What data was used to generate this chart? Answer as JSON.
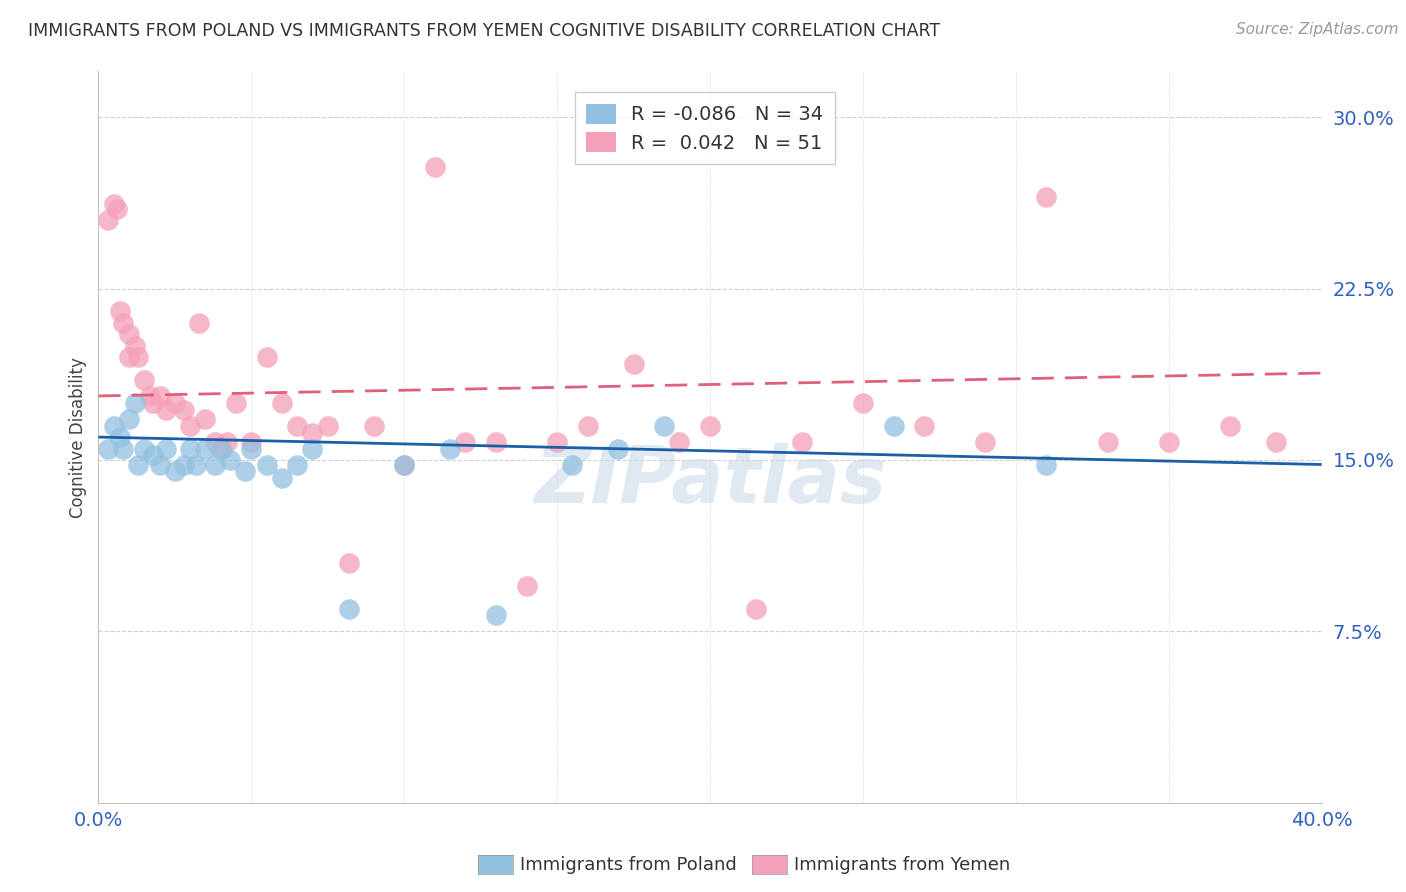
{
  "title": "IMMIGRANTS FROM POLAND VS IMMIGRANTS FROM YEMEN COGNITIVE DISABILITY CORRELATION CHART",
  "source": "Source: ZipAtlas.com",
  "ylabel": "Cognitive Disability",
  "ytick_labels": [
    "30.0%",
    "22.5%",
    "15.0%",
    "7.5%"
  ],
  "ytick_values": [
    0.3,
    0.225,
    0.15,
    0.075
  ],
  "xlim": [
    0.0,
    0.4
  ],
  "ylim": [
    0.0,
    0.32
  ],
  "color_poland": "#92c0e0",
  "color_yemen": "#f4a0b8",
  "color_poland_line": "#1a5fa8",
  "color_yemen_line": "#e0607a",
  "watermark": "ZIPatlas",
  "poland_scatter_x": [
    0.003,
    0.005,
    0.007,
    0.008,
    0.01,
    0.012,
    0.013,
    0.015,
    0.018,
    0.02,
    0.022,
    0.025,
    0.028,
    0.03,
    0.032,
    0.035,
    0.038,
    0.04,
    0.043,
    0.048,
    0.05,
    0.055,
    0.06,
    0.065,
    0.07,
    0.082,
    0.1,
    0.115,
    0.13,
    0.155,
    0.17,
    0.185,
    0.26,
    0.31
  ],
  "poland_scatter_y": [
    0.155,
    0.165,
    0.16,
    0.155,
    0.168,
    0.175,
    0.148,
    0.155,
    0.152,
    0.148,
    0.155,
    0.145,
    0.148,
    0.155,
    0.148,
    0.155,
    0.148,
    0.155,
    0.15,
    0.145,
    0.155,
    0.148,
    0.142,
    0.148,
    0.155,
    0.085,
    0.148,
    0.155,
    0.082,
    0.148,
    0.155,
    0.165,
    0.165,
    0.148
  ],
  "yemen_scatter_x": [
    0.003,
    0.005,
    0.006,
    0.007,
    0.008,
    0.01,
    0.01,
    0.012,
    0.013,
    0.015,
    0.017,
    0.018,
    0.02,
    0.022,
    0.025,
    0.028,
    0.03,
    0.033,
    0.035,
    0.038,
    0.04,
    0.042,
    0.045,
    0.05,
    0.055,
    0.06,
    0.065,
    0.07,
    0.075,
    0.082,
    0.09,
    0.1,
    0.11,
    0.12,
    0.13,
    0.14,
    0.15,
    0.16,
    0.175,
    0.19,
    0.2,
    0.215,
    0.23,
    0.25,
    0.27,
    0.29,
    0.31,
    0.33,
    0.35,
    0.37,
    0.385
  ],
  "yemen_scatter_y": [
    0.255,
    0.262,
    0.26,
    0.215,
    0.21,
    0.205,
    0.195,
    0.2,
    0.195,
    0.185,
    0.178,
    0.175,
    0.178,
    0.172,
    0.175,
    0.172,
    0.165,
    0.21,
    0.168,
    0.158,
    0.155,
    0.158,
    0.175,
    0.158,
    0.195,
    0.175,
    0.165,
    0.162,
    0.165,
    0.105,
    0.165,
    0.148,
    0.278,
    0.158,
    0.158,
    0.095,
    0.158,
    0.165,
    0.192,
    0.158,
    0.165,
    0.085,
    0.158,
    0.175,
    0.165,
    0.158,
    0.265,
    0.158,
    0.158,
    0.165,
    0.158
  ],
  "poland_line_x0": 0.0,
  "poland_line_y0": 0.16,
  "poland_line_x1": 0.4,
  "poland_line_y1": 0.148,
  "yemen_line_x0": 0.0,
  "yemen_line_y0": 0.178,
  "yemen_line_x1": 0.4,
  "yemen_line_y1": 0.188
}
